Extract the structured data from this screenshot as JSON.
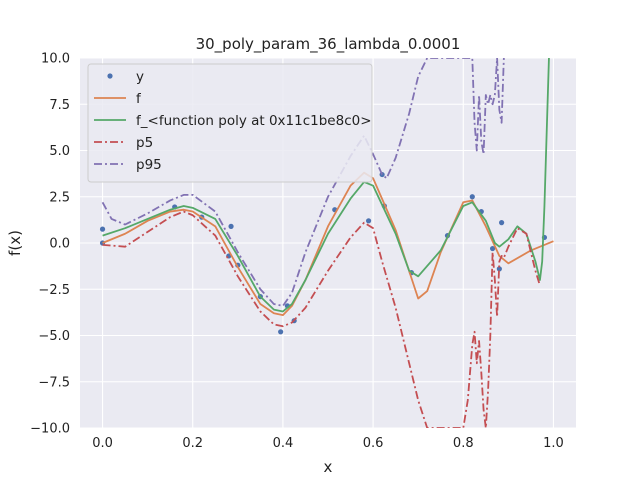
{
  "chart_data": {
    "type": "line",
    "title": "30_poly_param_36_lambda_0.0001",
    "xlabel": "x",
    "ylabel": "f(x)",
    "xlim": [
      -0.05,
      1.05
    ],
    "ylim": [
      -10,
      10
    ],
    "grid": true,
    "legend_position": "top-left",
    "x_ticks": [
      0.0,
      0.2,
      0.4,
      0.6,
      0.8,
      1.0
    ],
    "x_tick_labels": [
      "0.0",
      "0.2",
      "0.4",
      "0.6",
      "0.8",
      "1.0"
    ],
    "y_ticks": [
      -10,
      -7.5,
      -5,
      -2.5,
      0,
      2.5,
      5,
      7.5,
      10
    ],
    "y_tick_labels": [
      "−10.0",
      "−7.5",
      "−5.0",
      "−2.5",
      "0.0",
      "2.5",
      "5.0",
      "7.5",
      "10.0"
    ],
    "series": [
      {
        "name": "y",
        "kind": "scatter",
        "color": "#4c72b0",
        "x": [
          0.0,
          0.0,
          0.16,
          0.22,
          0.28,
          0.285,
          0.3,
          0.35,
          0.395,
          0.41,
          0.425,
          0.515,
          0.59,
          0.62,
          0.625,
          0.685,
          0.765,
          0.82,
          0.84,
          0.865,
          0.88,
          0.885,
          0.98
        ],
        "y": [
          0.0,
          0.75,
          1.95,
          1.4,
          -0.7,
          0.9,
          -1.2,
          -2.9,
          -4.8,
          -3.4,
          -4.2,
          1.8,
          1.2,
          3.7,
          2.0,
          -1.6,
          0.4,
          2.5,
          1.7,
          -0.3,
          -1.4,
          1.1,
          0.3
        ]
      },
      {
        "name": "f",
        "kind": "line",
        "color": "#dd8452",
        "dash": "",
        "x": [
          0.0,
          0.05,
          0.1,
          0.15,
          0.18,
          0.2,
          0.25,
          0.3,
          0.35,
          0.38,
          0.4,
          0.42,
          0.45,
          0.5,
          0.55,
          0.58,
          0.6,
          0.65,
          0.7,
          0.72,
          0.75,
          0.8,
          0.82,
          0.85,
          0.88,
          0.9,
          0.95,
          1.0
        ],
        "y": [
          0.0,
          0.5,
          1.2,
          1.7,
          1.8,
          1.7,
          0.9,
          -1.3,
          -3.3,
          -3.8,
          -3.9,
          -3.4,
          -2.0,
          0.9,
          3.1,
          3.8,
          3.5,
          0.7,
          -3.0,
          -2.6,
          -0.5,
          2.2,
          2.3,
          0.9,
          -0.7,
          -1.1,
          -0.4,
          0.1
        ]
      },
      {
        "name": "f_<function poly at 0x11c1be8c0>",
        "kind": "line",
        "color": "#55a868",
        "dash": "",
        "x": [
          0.0,
          0.05,
          0.1,
          0.15,
          0.18,
          0.2,
          0.25,
          0.3,
          0.35,
          0.38,
          0.4,
          0.42,
          0.45,
          0.5,
          0.55,
          0.58,
          0.6,
          0.65,
          0.68,
          0.7,
          0.75,
          0.8,
          0.82,
          0.85,
          0.87,
          0.88,
          0.9,
          0.92,
          0.94,
          0.96,
          0.97,
          0.975,
          0.98,
          0.99
        ],
        "y": [
          0.4,
          0.8,
          1.3,
          1.8,
          2.0,
          1.9,
          1.3,
          -0.7,
          -2.9,
          -3.6,
          -3.7,
          -3.3,
          -2.0,
          0.5,
          2.4,
          3.3,
          3.1,
          0.5,
          -1.5,
          -1.8,
          -0.4,
          2.0,
          2.2,
          1.2,
          0.0,
          -0.2,
          0.2,
          0.9,
          0.5,
          -1.0,
          -2.0,
          -1.0,
          2.0,
          10.0
        ]
      },
      {
        "name": "p5",
        "kind": "line",
        "color": "#c44e52",
        "dash": "8,3,2,3",
        "x": [
          0.0,
          0.05,
          0.1,
          0.15,
          0.18,
          0.2,
          0.25,
          0.3,
          0.35,
          0.38,
          0.4,
          0.42,
          0.45,
          0.5,
          0.55,
          0.58,
          0.6,
          0.62,
          0.65,
          0.68,
          0.7,
          0.72,
          0.74,
          0.76,
          0.78,
          0.8,
          0.81,
          0.82,
          0.825,
          0.83,
          0.835,
          0.84,
          0.845,
          0.85,
          0.855,
          0.86,
          0.865,
          0.87,
          0.875,
          0.88,
          0.885,
          0.89,
          0.9,
          0.92,
          0.94,
          0.96,
          0.97
        ],
        "y": [
          -0.1,
          -0.2,
          0.6,
          1.4,
          1.7,
          1.5,
          0.4,
          -1.8,
          -3.7,
          -4.4,
          -4.5,
          -4.3,
          -3.5,
          -1.5,
          0.3,
          1.1,
          0.8,
          -1.0,
          -3.5,
          -6.5,
          -8.5,
          -10.0,
          -10.0,
          -10.0,
          -10.0,
          -10.0,
          -8.5,
          -5.5,
          -4.8,
          -6.5,
          -5.3,
          -7.0,
          -9.0,
          -10.0,
          -8.0,
          -5.0,
          -0.5,
          -2.0,
          -4.0,
          -1.0,
          -0.7,
          -0.8,
          -0.2,
          0.8,
          0.5,
          -1.5,
          -2.3
        ]
      },
      {
        "name": "p95",
        "kind": "line",
        "color": "#8172b3",
        "dash": "8,3,2,3",
        "x": [
          0.0,
          0.02,
          0.05,
          0.1,
          0.15,
          0.18,
          0.2,
          0.25,
          0.3,
          0.35,
          0.38,
          0.4,
          0.42,
          0.45,
          0.5,
          0.55,
          0.58,
          0.6,
          0.62,
          0.63,
          0.65,
          0.68,
          0.7,
          0.72,
          0.74,
          0.76,
          0.78,
          0.8,
          0.81,
          0.82,
          0.825,
          0.83,
          0.835,
          0.84,
          0.845,
          0.85,
          0.855,
          0.86,
          0.865,
          0.87,
          0.875,
          0.88,
          0.885,
          0.89
        ],
        "y": [
          2.2,
          1.3,
          1.0,
          1.6,
          2.3,
          2.6,
          2.6,
          1.7,
          -0.5,
          -2.5,
          -3.3,
          -3.4,
          -2.7,
          -0.5,
          2.5,
          4.7,
          5.8,
          4.8,
          3.7,
          3.5,
          4.6,
          7.0,
          9.0,
          10.0,
          10.0,
          10.0,
          10.0,
          10.0,
          10.0,
          10.0,
          6.5,
          5.0,
          8.0,
          5.5,
          4.8,
          8.0,
          7.5,
          8.0,
          7.5,
          8.0,
          10.0,
          7.2,
          6.5,
          10.0
        ]
      }
    ]
  }
}
